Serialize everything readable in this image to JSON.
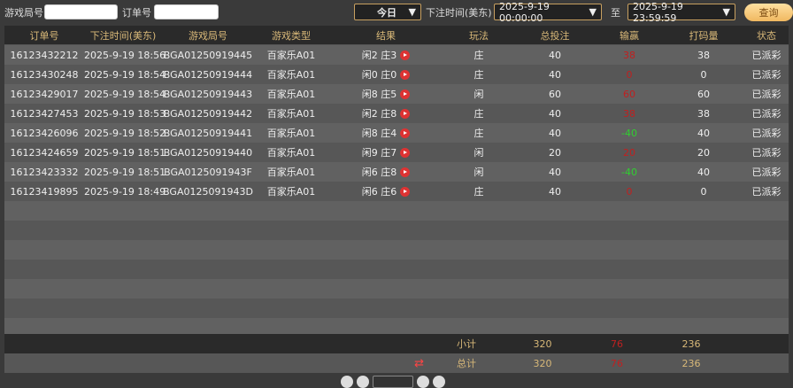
{
  "filters": {
    "game_round_label": "游戏局号",
    "game_round_value": "",
    "order_label": "订单号",
    "order_value": "",
    "period": "今日",
    "time_label": "下注时间(美东)",
    "start": "2025-9-19 00:00:00",
    "to_label": "至",
    "end": "2025-9-19 23:59:59",
    "query_button": "查询"
  },
  "columns": [
    "订单号",
    "下注时间(美东)",
    "游戏局号",
    "游戏类型",
    "结果",
    "玩法",
    "总投注",
    "输赢",
    "打码量",
    "状态"
  ],
  "rows": [
    [
      "16123432212",
      "2025-9-19 18:56",
      "BGA01250919445",
      "百家乐A01",
      "闲2 庄3",
      "庄",
      "40",
      "38",
      "38",
      "已派彩"
    ],
    [
      "16123430248",
      "2025-9-19 18:54",
      "BGA01250919444",
      "百家乐A01",
      "闲0 庄0",
      "庄",
      "40",
      "0",
      "0",
      "已派彩"
    ],
    [
      "16123429017",
      "2025-9-19 18:54",
      "BGA01250919443",
      "百家乐A01",
      "闲8 庄5",
      "闲",
      "60",
      "60",
      "60",
      "已派彩"
    ],
    [
      "16123427453",
      "2025-9-19 18:53",
      "BGA01250919442",
      "百家乐A01",
      "闲2 庄8",
      "庄",
      "40",
      "38",
      "38",
      "已派彩"
    ],
    [
      "16123426096",
      "2025-9-19 18:52",
      "BGA01250919441",
      "百家乐A01",
      "闲8 庄4",
      "庄",
      "40",
      "-40",
      "40",
      "已派彩"
    ],
    [
      "16123424659",
      "2025-9-19 18:51",
      "BGA01250919440",
      "百家乐A01",
      "闲9 庄7",
      "闲",
      "20",
      "20",
      "20",
      "已派彩"
    ],
    [
      "16123423332",
      "2025-9-19 18:51",
      "BGA0125091943F",
      "百家乐A01",
      "闲6 庄8",
      "闲",
      "40",
      "-40",
      "40",
      "已派彩"
    ],
    [
      "16123419895",
      "2025-9-19 18:49",
      "BGA0125091943D",
      "百家乐A01",
      "闲6 庄6",
      "庄",
      "40",
      "0",
      "0",
      "已派彩"
    ]
  ],
  "subtotal": {
    "label": "小计",
    "bet": "320",
    "winloss": "76",
    "turnover": "236"
  },
  "total": {
    "label": "总计",
    "bet": "320",
    "winloss": "76",
    "turnover": "236"
  },
  "colors": {
    "win": "#c02020",
    "loss": "#30d030",
    "accent": "#d8b878"
  }
}
